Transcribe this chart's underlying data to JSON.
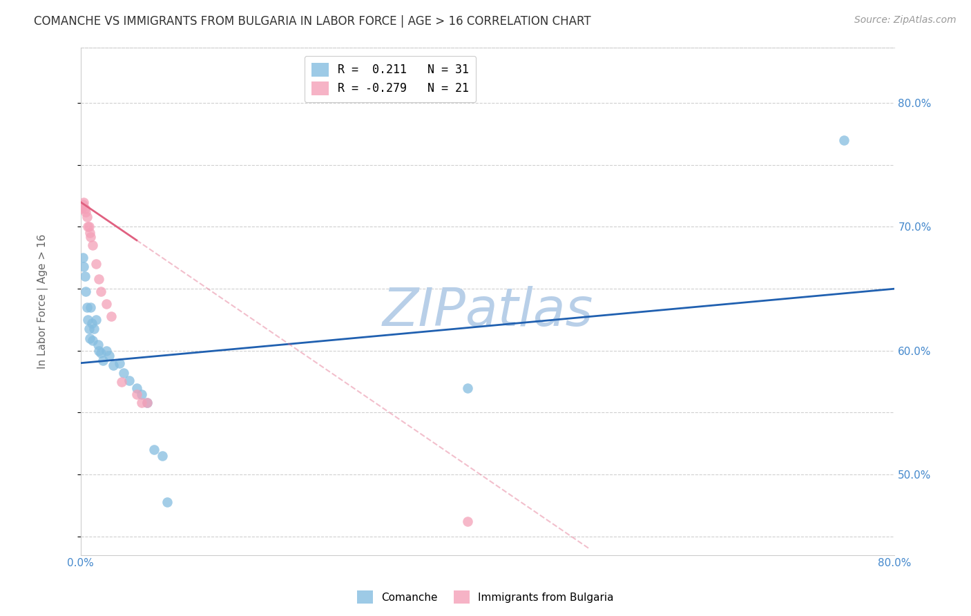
{
  "title": "COMANCHE VS IMMIGRANTS FROM BULGARIA IN LABOR FORCE | AGE > 16 CORRELATION CHART",
  "source": "Source: ZipAtlas.com",
  "ylabel_left": "In Labor Force | Age > 16",
  "y_tick_labels": [
    "80.0%",
    "70.0%",
    "60.0%",
    "50.0%"
  ],
  "y_tick_values": [
    0.8,
    0.7,
    0.6,
    0.5
  ],
  "xlim": [
    0.0,
    0.8
  ],
  "ylim": [
    0.435,
    0.845
  ],
  "legend_r1": "R =  0.211   N = 31",
  "legend_r2": "R = -0.279   N = 21",
  "watermark": "ZIPatlas",
  "watermark_color": "#b8cfe8",
  "comanche_x": [
    0.002,
    0.003,
    0.004,
    0.005,
    0.006,
    0.007,
    0.008,
    0.009,
    0.01,
    0.011,
    0.012,
    0.013,
    0.015,
    0.017,
    0.018,
    0.02,
    0.022,
    0.025,
    0.028,
    0.032,
    0.038,
    0.042,
    0.048,
    0.055,
    0.06,
    0.065,
    0.072,
    0.08,
    0.085,
    0.38,
    0.75
  ],
  "comanche_y": [
    0.675,
    0.668,
    0.66,
    0.648,
    0.635,
    0.625,
    0.618,
    0.61,
    0.635,
    0.622,
    0.608,
    0.618,
    0.625,
    0.605,
    0.6,
    0.598,
    0.592,
    0.6,
    0.596,
    0.588,
    0.59,
    0.582,
    0.576,
    0.57,
    0.565,
    0.558,
    0.52,
    0.515,
    0.478,
    0.57,
    0.77
  ],
  "bulgaria_x": [
    0.001,
    0.002,
    0.003,
    0.004,
    0.005,
    0.006,
    0.007,
    0.008,
    0.009,
    0.01,
    0.012,
    0.015,
    0.018,
    0.02,
    0.025,
    0.03,
    0.04,
    0.055,
    0.06,
    0.065,
    0.38
  ],
  "bulgaria_y": [
    0.715,
    0.718,
    0.72,
    0.715,
    0.712,
    0.708,
    0.7,
    0.7,
    0.695,
    0.692,
    0.685,
    0.67,
    0.658,
    0.648,
    0.638,
    0.628,
    0.575,
    0.565,
    0.558,
    0.558,
    0.462
  ],
  "comanche_color": "#85bde0",
  "bulgaria_color": "#f4a0b8",
  "trend_comanche_color": "#2060b0",
  "trend_bulgaria_color": "#e06080",
  "bg_color": "#ffffff",
  "grid_color": "#bbbbbb",
  "title_color": "#333333",
  "source_color": "#999999",
  "axis_label_color": "#666666",
  "right_tick_color": "#4488cc",
  "bottom_tick_color": "#4488cc"
}
